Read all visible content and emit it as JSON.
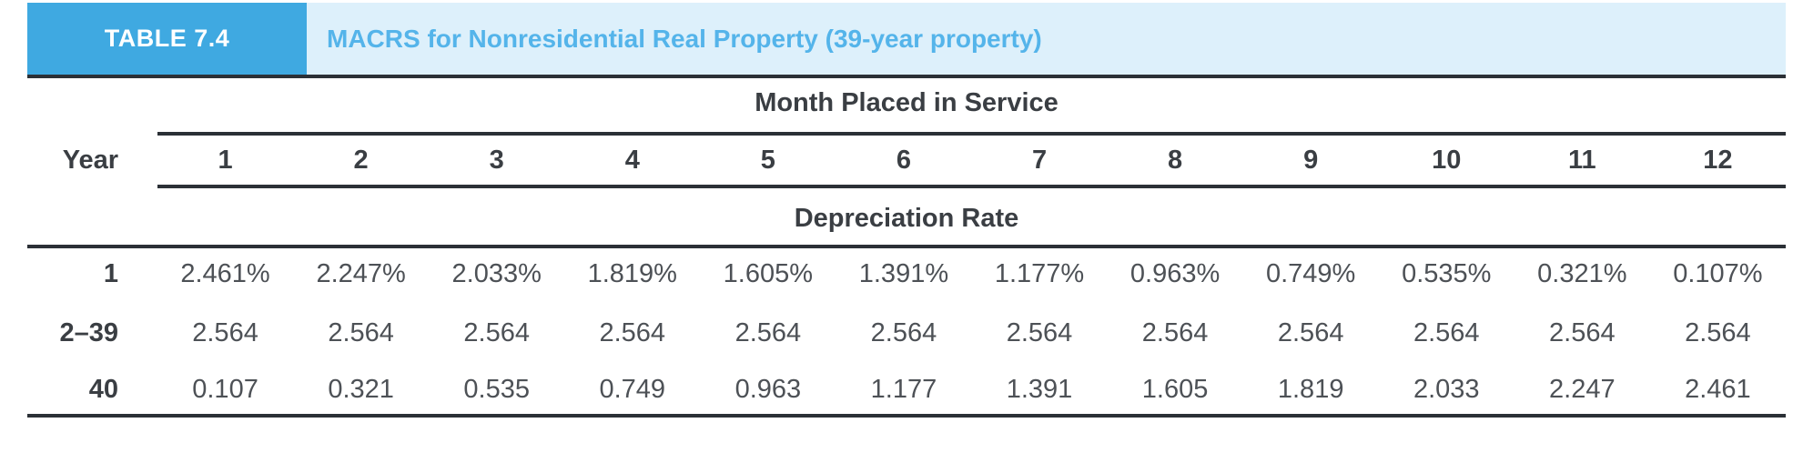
{
  "header": {
    "table_label": "TABLE 7.4",
    "title": "MACRS for Nonresidential Real Property (39-year property)"
  },
  "table": {
    "month_header": "Month Placed in Service",
    "year_header": "Year",
    "section_header": "Depreciation Rate",
    "months": [
      "1",
      "2",
      "3",
      "4",
      "5",
      "6",
      "7",
      "8",
      "9",
      "10",
      "11",
      "12"
    ],
    "rows": [
      {
        "year": "1",
        "values": [
          "2.461%",
          "2.247%",
          "2.033%",
          "1.819%",
          "1.605%",
          "1.391%",
          "1.177%",
          "0.963%",
          "0.749%",
          "0.535%",
          "0.321%",
          "0.107%"
        ]
      },
      {
        "year": "2–39",
        "values": [
          "2.564",
          "2.564",
          "2.564",
          "2.564",
          "2.564",
          "2.564",
          "2.564",
          "2.564",
          "2.564",
          "2.564",
          "2.564",
          "2.564"
        ]
      },
      {
        "year": "40",
        "values": [
          "0.107",
          "0.321",
          "0.535",
          "0.749",
          "0.963",
          "1.177",
          "1.391",
          "1.605",
          "1.819",
          "2.033",
          "2.247",
          "2.461"
        ]
      }
    ]
  },
  "colors": {
    "label_box_blue": "#3fa9e1",
    "title_band_blue": "#ddf0fb",
    "title_text_blue": "#54b4ea",
    "header_text": "#3a3e43",
    "value_text": "#4d5156",
    "rule": "#2b3036"
  }
}
